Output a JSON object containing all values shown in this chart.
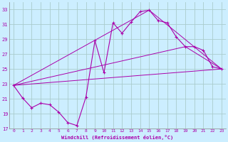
{
  "xlabel": "Windchill (Refroidissement éolien,°C)",
  "bg_color": "#cceeff",
  "grid_color": "#aacccc",
  "line_color": "#aa00aa",
  "xlim": [
    -0.5,
    23.5
  ],
  "ylim": [
    17,
    34
  ],
  "yticks": [
    17,
    19,
    21,
    23,
    25,
    27,
    29,
    31,
    33
  ],
  "xticks": [
    0,
    1,
    2,
    3,
    4,
    5,
    6,
    7,
    8,
    9,
    10,
    11,
    12,
    13,
    14,
    15,
    16,
    17,
    18,
    19,
    20,
    21,
    22,
    23
  ],
  "series": [
    [
      0,
      22.8
    ],
    [
      1,
      21.1
    ],
    [
      2,
      19.8
    ],
    [
      3,
      20.4
    ],
    [
      4,
      20.2
    ],
    [
      5,
      19.2
    ],
    [
      6,
      17.8
    ],
    [
      7,
      17.4
    ],
    [
      8,
      21.2
    ],
    [
      9,
      28.8
    ],
    [
      10,
      24.5
    ],
    [
      11,
      31.2
    ],
    [
      12,
      29.8
    ],
    [
      13,
      31.3
    ],
    [
      14,
      32.7
    ],
    [
      15,
      32.9
    ],
    [
      16,
      31.5
    ],
    [
      17,
      31.2
    ],
    [
      18,
      29.3
    ],
    [
      19,
      28.0
    ],
    [
      20,
      28.0
    ],
    [
      21,
      27.5
    ],
    [
      22,
      25.3
    ],
    [
      23,
      25.0
    ]
  ],
  "line2": [
    [
      0,
      22.8
    ],
    [
      23,
      25.0
    ]
  ],
  "line3": [
    [
      0,
      22.8
    ],
    [
      15,
      32.9
    ],
    [
      23,
      25.0
    ]
  ],
  "line4": [
    [
      0,
      22.8
    ],
    [
      19,
      28.0
    ],
    [
      23,
      25.0
    ]
  ]
}
